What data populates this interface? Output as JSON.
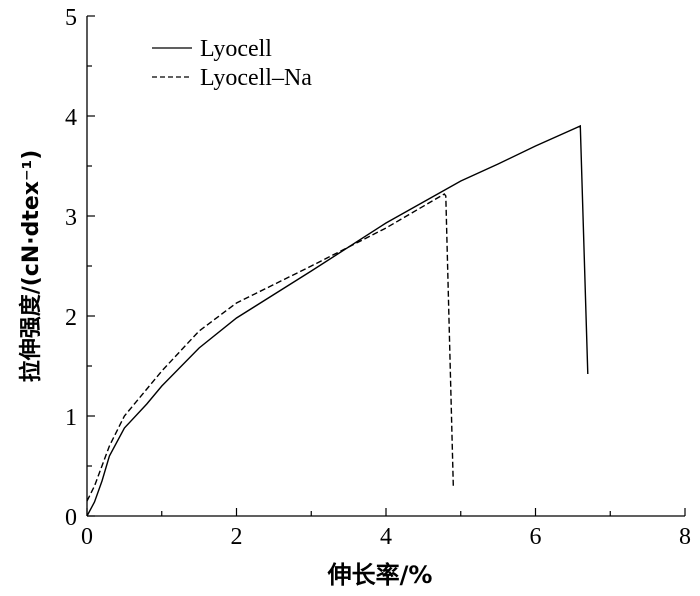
{
  "chart_data": {
    "type": "line",
    "title": "",
    "xlabel": "伸长率/%",
    "ylabel": "拉伸强度/(cN·dtex⁻¹)",
    "xlim": [
      0,
      8
    ],
    "ylim": [
      0,
      5
    ],
    "xticks": [
      "0",
      "2",
      "4",
      "6",
      "8"
    ],
    "yticks": [
      "0",
      "1",
      "2",
      "3",
      "4",
      "5"
    ],
    "grid": false,
    "legend_placement": "top-left",
    "series": [
      {
        "name": "Lyocell",
        "style": "solid",
        "x": [
          0,
          0.1,
          0.2,
          0.3,
          0.5,
          0.8,
          1.0,
          1.5,
          2.0,
          3.0,
          4.0,
          5.0,
          5.5,
          6.0,
          6.6,
          6.7
        ],
        "y": [
          0,
          0.14,
          0.35,
          0.6,
          0.88,
          1.12,
          1.3,
          1.68,
          1.98,
          2.45,
          2.93,
          3.35,
          3.52,
          3.7,
          3.9,
          1.42
        ]
      },
      {
        "name": "Lyocell–Na",
        "style": "dashed",
        "x": [
          0,
          0.1,
          0.3,
          0.5,
          1.0,
          1.5,
          2.0,
          3.0,
          4.0,
          4.78,
          4.8,
          4.9
        ],
        "y": [
          0.15,
          0.3,
          0.7,
          1.0,
          1.45,
          1.85,
          2.13,
          2.5,
          2.88,
          3.22,
          3.2,
          0.3
        ]
      }
    ]
  }
}
